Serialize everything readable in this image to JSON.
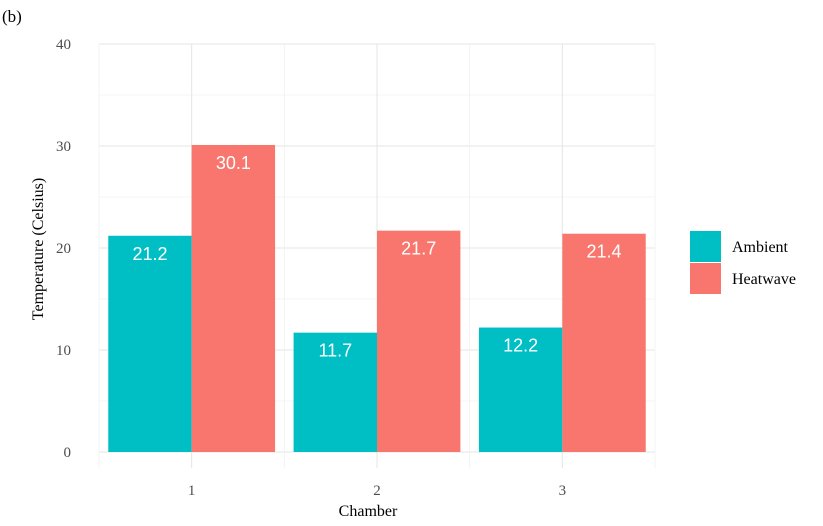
{
  "panel_label": "(b)",
  "chart_data": {
    "type": "bar",
    "categories": [
      "1",
      "2",
      "3"
    ],
    "series": [
      {
        "name": "Ambient",
        "values": [
          21.2,
          11.7,
          12.2
        ],
        "color": "#00BFC4"
      },
      {
        "name": "Heatwave",
        "values": [
          30.1,
          21.7,
          21.4
        ],
        "color": "#F8766D"
      }
    ],
    "value_labels": [
      [
        "21.2",
        "11.7",
        "12.2"
      ],
      [
        "30.1",
        "21.7",
        "21.4"
      ]
    ],
    "xlabel": "Chamber",
    "ylabel": "Temperature (Celsius)",
    "ylim": [
      0,
      40
    ],
    "yticks": [
      "0",
      "10",
      "20",
      "30",
      "40"
    ],
    "grid": true,
    "legend_position": "right",
    "legend": [
      "Ambient",
      "Heatwave"
    ]
  }
}
